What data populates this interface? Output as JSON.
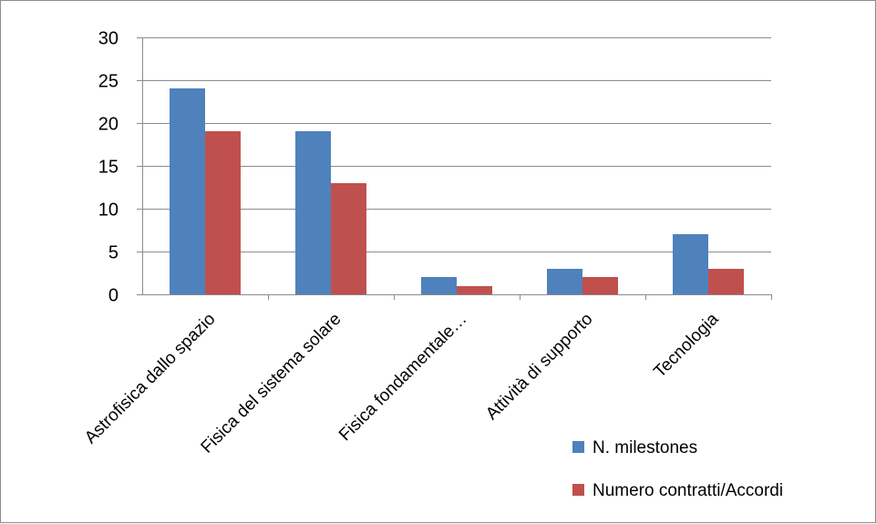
{
  "chart_data": {
    "type": "bar",
    "title": "",
    "xlabel": "",
    "ylabel": "",
    "categories": [
      "Astrofisica dallo spazio",
      "Fisica del sistema solare",
      "Fisica fondamentale…",
      "Attività di supporto",
      "Tecnologia"
    ],
    "series": [
      {
        "name": "N. milestones",
        "values": [
          24,
          19,
          2,
          3,
          7
        ],
        "color": "#4f81bd"
      },
      {
        "name": "Numero contratti/Accordi",
        "values": [
          19,
          13,
          1,
          2,
          3
        ],
        "color": "#c0504d"
      }
    ],
    "ylim": [
      0,
      30
    ],
    "yticks": [
      0,
      5,
      10,
      15,
      20,
      25,
      30
    ],
    "grid": true,
    "legend_position": "bottom-right"
  }
}
